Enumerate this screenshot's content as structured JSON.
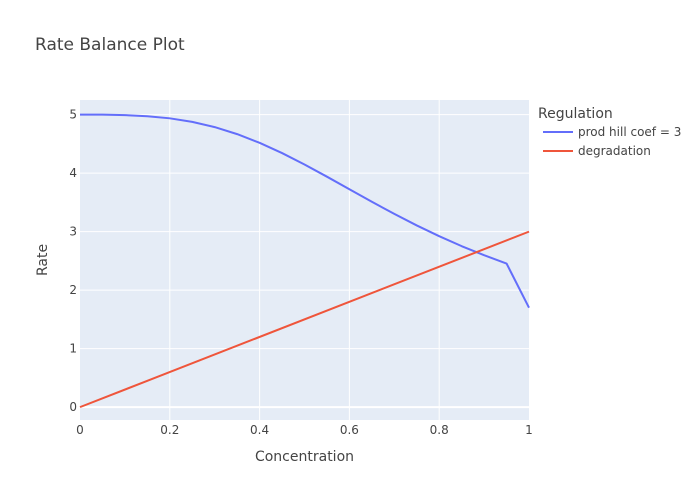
{
  "chart_data": {
    "type": "line",
    "title": "Rate Balance Plot",
    "xlabel": "Concentration",
    "ylabel": "Rate",
    "xlim": [
      0,
      1
    ],
    "ylim": [
      -0.22,
      5.25
    ],
    "x_ticks": [
      0,
      0.2,
      0.4,
      0.6,
      0.8,
      1
    ],
    "x_tick_labels": [
      "0",
      "0.2",
      "0.4",
      "0.6",
      "0.8",
      "1"
    ],
    "y_ticks": [
      0,
      1,
      2,
      3,
      4,
      5
    ],
    "y_tick_labels": [
      "0",
      "1",
      "2",
      "3",
      "4",
      "5"
    ],
    "grid": true,
    "legend_title": "Regulation",
    "legend_position": "right",
    "series": [
      {
        "name": "prod hill coef = 3",
        "color": "#636efa",
        "x": [
          0,
          0.05,
          0.1,
          0.15,
          0.2,
          0.25,
          0.3,
          0.35,
          0.4,
          0.45,
          0.5,
          0.55,
          0.6,
          0.65,
          0.7,
          0.75,
          0.8,
          0.85,
          0.9,
          0.95,
          1.0
        ],
        "y": [
          5.0,
          4.999,
          4.992,
          4.973,
          4.937,
          4.876,
          4.787,
          4.667,
          4.518,
          4.343,
          4.148,
          3.939,
          3.724,
          3.51,
          3.303,
          3.106,
          2.922,
          2.752,
          2.597,
          2.455,
          1.7
        ]
      },
      {
        "name": "degradation",
        "color": "#ef553b",
        "x": [
          0,
          1
        ],
        "y": [
          0,
          3
        ]
      }
    ]
  }
}
